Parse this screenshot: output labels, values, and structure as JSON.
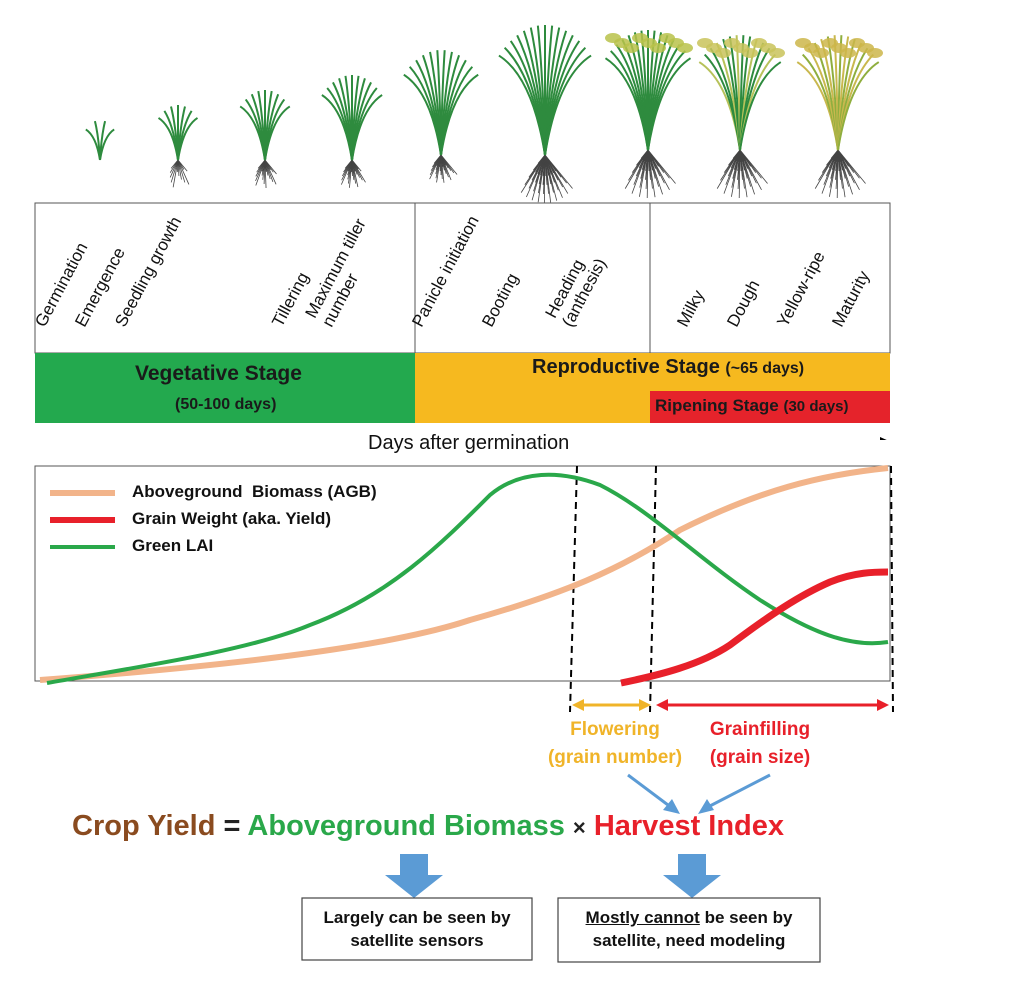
{
  "growth_stages": [
    [
      "Germination"
    ],
    [
      "Emergence"
    ],
    [
      "Seedling growth"
    ],
    [
      "Tillering"
    ],
    [
      "Maximum tiller",
      "number"
    ],
    [
      "Panicle initiation"
    ],
    [
      "Booting"
    ],
    [
      "Heading",
      "(anthesis)"
    ],
    [
      "Milky"
    ],
    [
      "Dough"
    ],
    [
      "Yellow-ripe"
    ],
    [
      "Maturity"
    ]
  ],
  "phases": {
    "vegetative": {
      "title": "Vegetative Stage",
      "duration": "(50-100 days)",
      "color": "#23a94e"
    },
    "reproductive": {
      "title": "Reproductive Stage",
      "duration": "(~65 days)",
      "color": "#f6b91f"
    },
    "ripening": {
      "title": "Ripening Stage",
      "duration": "(30 days)",
      "color": "#e5232b"
    }
  },
  "axis_label": "Days after germination",
  "legend": [
    {
      "name": "Aboveground  Biomass (AGB)",
      "color": "#f2b48a"
    },
    {
      "name": "Grain Weight (aka. Yield)",
      "color": "#e8202a"
    },
    {
      "name": "Green LAI",
      "color": "#2aa84a"
    }
  ],
  "periods": {
    "flowering": {
      "line1": "Flowering",
      "line2": "(grain number)",
      "color": "#f0b429"
    },
    "grainfilling": {
      "line1": "Grainfilling",
      "line2": "(grain size)",
      "color": "#e8202a"
    }
  },
  "equation": {
    "lhs": "Crop Yield",
    "equals": "=",
    "term1": "Aboveground Biomass",
    "times": "×",
    "term2": "Harvest Index",
    "colors": {
      "lhs": "#8a4b1f",
      "term1": "#2aa84a",
      "term2": "#e8202a",
      "arrow": "#5b9bd5"
    }
  },
  "notes": {
    "left": [
      "Largely can be seen by",
      "satellite sensors"
    ],
    "right_underlined": "Mostly cannot",
    "right_rest": " be seen by",
    "right_line2": "satellite, need modeling"
  }
}
